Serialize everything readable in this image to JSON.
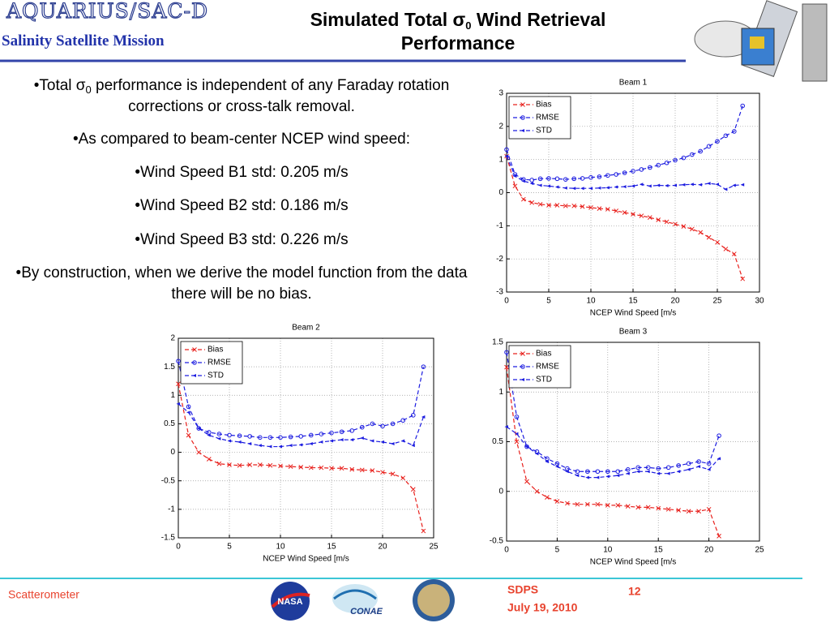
{
  "header": {
    "logo": "AQUARIUS/SAC-D",
    "subtitle": "Salinity Satellite Mission",
    "title": {
      "prefix": "Simulated Total σ",
      "sub": "0",
      "suffix": " Wind Retrieval Performance"
    }
  },
  "bullets": [
    {
      "prefix": "•Total σ",
      "sub": "0",
      "suffix": " performance is independent of any Faraday rotation corrections or cross-talk removal."
    },
    "•As compared to beam-center NCEP wind speed:",
    "•Wind Speed B1 std: 0.205 m/s",
    "•Wind Speed B2 std: 0.186 m/s",
    "•Wind Speed B3 std: 0.226 m/s",
    "•By construction, when we derive the model function from the data there will be no bias."
  ],
  "footer": {
    "section": "Scatterometer",
    "org": "SDPS",
    "page": "12",
    "date": "July 19, 2010",
    "logos": [
      "NASA",
      "CONAE"
    ]
  },
  "chart_data": [
    {
      "type": "line",
      "title": "Beam 1",
      "x_label": "NCEP Wind Speed [m/s",
      "x": [
        0,
        1,
        2,
        3,
        4,
        5,
        6,
        7,
        8,
        9,
        10,
        11,
        12,
        13,
        14,
        15,
        16,
        17,
        18,
        19,
        20,
        21,
        22,
        23,
        24,
        25,
        26,
        27,
        28
      ],
      "xlim": [
        0,
        30
      ],
      "xticks": [
        0,
        5,
        10,
        15,
        20,
        25,
        30
      ],
      "ylim": [
        -3,
        3
      ],
      "yticks": [
        -3,
        -2,
        -1,
        0,
        1,
        2,
        3
      ],
      "grid": true,
      "legend": "upper-left",
      "series": [
        {
          "name": "Bias",
          "color": "#e8201c",
          "marker": "x",
          "values": [
            1.1,
            0.2,
            -0.2,
            -0.3,
            -0.35,
            -0.38,
            -0.38,
            -0.4,
            -0.4,
            -0.42,
            -0.45,
            -0.48,
            -0.5,
            -0.55,
            -0.6,
            -0.65,
            -0.7,
            -0.75,
            -0.82,
            -0.88,
            -0.95,
            -1.02,
            -1.1,
            -1.2,
            -1.35,
            -1.5,
            -1.7,
            -1.85,
            -2.6
          ]
        },
        {
          "name": "RMSE",
          "color": "#1c1ce0",
          "marker": "o",
          "values": [
            1.3,
            0.55,
            0.4,
            0.38,
            0.42,
            0.43,
            0.42,
            0.4,
            0.42,
            0.43,
            0.46,
            0.48,
            0.52,
            0.55,
            0.6,
            0.65,
            0.7,
            0.76,
            0.83,
            0.9,
            0.98,
            1.05,
            1.15,
            1.25,
            1.4,
            1.55,
            1.72,
            1.85,
            2.62
          ]
        },
        {
          "name": "STD",
          "color": "#1c1ce0",
          "marker": "triangle",
          "values": [
            1.1,
            0.5,
            0.35,
            0.28,
            0.22,
            0.2,
            0.17,
            0.14,
            0.13,
            0.13,
            0.13,
            0.14,
            0.15,
            0.17,
            0.18,
            0.2,
            0.25,
            0.2,
            0.22,
            0.21,
            0.22,
            0.24,
            0.25,
            0.24,
            0.28,
            0.25,
            0.1,
            0.22,
            0.24
          ]
        }
      ]
    },
    {
      "type": "line",
      "title": "Beam 2",
      "x_label": "NCEP Wind Speed [m/s",
      "x": [
        0,
        1,
        2,
        3,
        4,
        5,
        6,
        7,
        8,
        9,
        10,
        11,
        12,
        13,
        14,
        15,
        16,
        17,
        18,
        19,
        20,
        21,
        22,
        23,
        24
      ],
      "xlim": [
        0,
        25
      ],
      "xticks": [
        0,
        5,
        10,
        15,
        20,
        25
      ],
      "ylim": [
        -1.5,
        2
      ],
      "yticks": [
        -1.5,
        -1,
        -0.5,
        0,
        0.5,
        1,
        1.5,
        2
      ],
      "grid": true,
      "legend": "upper-left",
      "series": [
        {
          "name": "Bias",
          "color": "#e8201c",
          "marker": "x",
          "values": [
            1.2,
            0.3,
            0,
            -0.12,
            -0.2,
            -0.22,
            -0.23,
            -0.22,
            -0.22,
            -0.23,
            -0.24,
            -0.25,
            -0.26,
            -0.27,
            -0.27,
            -0.28,
            -0.28,
            -0.3,
            -0.31,
            -0.32,
            -0.35,
            -0.38,
            -0.45,
            -0.65,
            -1.38
          ]
        },
        {
          "name": "RMSE",
          "color": "#1c1ce0",
          "marker": "o",
          "values": [
            1.6,
            0.8,
            0.42,
            0.35,
            0.32,
            0.3,
            0.29,
            0.28,
            0.26,
            0.26,
            0.26,
            0.27,
            0.28,
            0.3,
            0.32,
            0.34,
            0.36,
            0.38,
            0.44,
            0.5,
            0.46,
            0.5,
            0.56,
            0.65,
            1.5
          ]
        },
        {
          "name": "STD",
          "color": "#1c1ce0",
          "marker": "triangle",
          "values": [
            0.85,
            0.7,
            0.42,
            0.3,
            0.24,
            0.2,
            0.18,
            0.15,
            0.12,
            0.1,
            0.1,
            0.12,
            0.13,
            0.15,
            0.18,
            0.2,
            0.22,
            0.22,
            0.25,
            0.2,
            0.18,
            0.15,
            0.2,
            0.12,
            0.62
          ]
        }
      ]
    },
    {
      "type": "line",
      "title": "Beam 3",
      "x_label": "NCEP Wind Speed [m/s",
      "x": [
        0,
        1,
        2,
        3,
        4,
        5,
        6,
        7,
        8,
        9,
        10,
        11,
        12,
        13,
        14,
        15,
        16,
        17,
        18,
        19,
        20,
        21
      ],
      "xlim": [
        0,
        25
      ],
      "xticks": [
        0,
        5,
        10,
        15,
        20,
        25
      ],
      "ylim": [
        -0.5,
        1.5
      ],
      "yticks": [
        -0.5,
        0,
        0.5,
        1,
        1.5
      ],
      "grid": true,
      "legend": "upper-left",
      "series": [
        {
          "name": "Bias",
          "color": "#e8201c",
          "marker": "x",
          "values": [
            1.25,
            0.5,
            0.1,
            0,
            -0.06,
            -0.1,
            -0.12,
            -0.13,
            -0.13,
            -0.13,
            -0.14,
            -0.14,
            -0.15,
            -0.16,
            -0.16,
            -0.17,
            -0.18,
            -0.19,
            -0.2,
            -0.2,
            -0.18,
            -0.45
          ]
        },
        {
          "name": "RMSE",
          "color": "#1c1ce0",
          "marker": "o",
          "values": [
            1.4,
            0.75,
            0.45,
            0.4,
            0.33,
            0.28,
            0.23,
            0.2,
            0.2,
            0.2,
            0.2,
            0.2,
            0.22,
            0.24,
            0.24,
            0.23,
            0.24,
            0.26,
            0.28,
            0.3,
            0.28,
            0.56
          ]
        },
        {
          "name": "STD",
          "color": "#1c1ce0",
          "marker": "triangle",
          "values": [
            0.65,
            0.58,
            0.45,
            0.38,
            0.3,
            0.25,
            0.2,
            0.16,
            0.14,
            0.14,
            0.15,
            0.16,
            0.18,
            0.2,
            0.2,
            0.18,
            0.18,
            0.2,
            0.22,
            0.25,
            0.22,
            0.33
          ]
        }
      ]
    }
  ]
}
